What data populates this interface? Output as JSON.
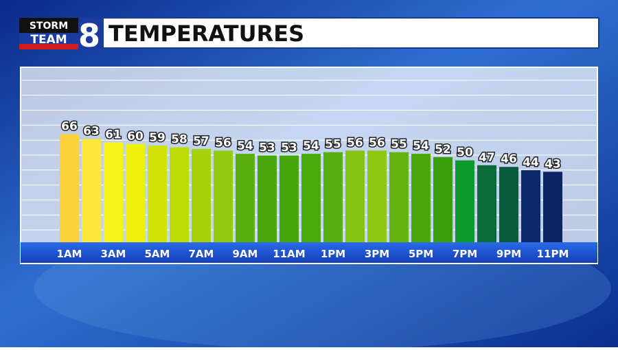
{
  "logo": {
    "line1": "STORM",
    "line2": "TEAM",
    "number": "8"
  },
  "chart_data": {
    "type": "bar",
    "title": "TEMPERATURES",
    "categories": [
      "1AM",
      null,
      "3AM",
      null,
      "5AM",
      null,
      "7AM",
      null,
      "9AM",
      null,
      "11AM",
      null,
      "1PM",
      null,
      "3PM",
      null,
      "5PM",
      null,
      "7PM",
      null,
      "9PM",
      null,
      "11PM"
    ],
    "values": [
      66,
      63,
      61,
      60,
      59,
      58,
      57,
      56,
      54,
      53,
      53,
      54,
      55,
      56,
      56,
      55,
      54,
      52,
      50,
      47,
      46,
      44,
      43
    ],
    "colors": [
      "#fbd23c",
      "#fbe83a",
      "#f6f21a",
      "#ecf00c",
      "#cfe406",
      "#bcdc08",
      "#a6d20c",
      "#94ca10",
      "#5cb00e",
      "#4aa80c",
      "#46a60c",
      "#4aaa0c",
      "#58b010",
      "#86c414",
      "#8ec812",
      "#64b410",
      "#4aa80c",
      "#3a9e0c",
      "#0c9a2a",
      "#0a6a3a",
      "#0a5a3e",
      "#0c2a6a",
      "#0c2462"
    ],
    "ylim": [
      0,
      106
    ]
  }
}
